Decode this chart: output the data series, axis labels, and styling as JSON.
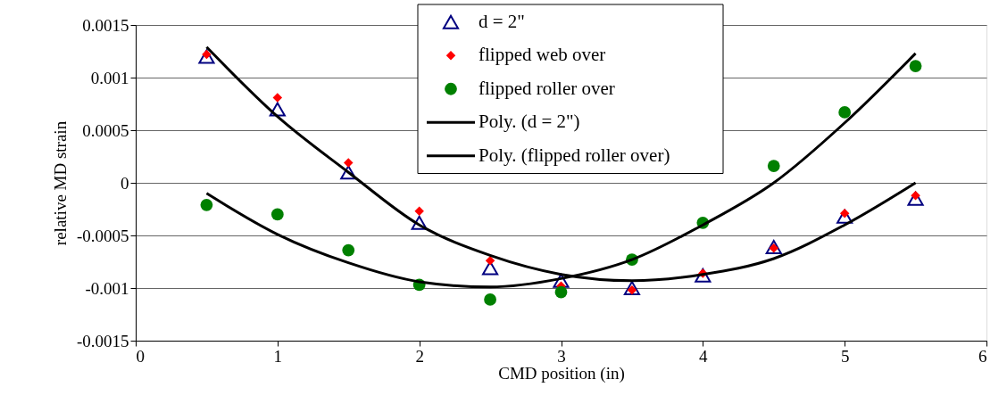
{
  "chart_data": {
    "type": "scatter",
    "xlabel": "CMD position (in)",
    "ylabel": "relative MD strain",
    "xlim": [
      0,
      6
    ],
    "xticks": [
      0,
      1,
      2,
      3,
      4,
      5,
      6
    ],
    "ylim": [
      -0.0015,
      0.0015
    ],
    "yticks": [
      -0.0015,
      -0.001,
      -0.0005,
      0,
      0.0005,
      0.001,
      0.0015
    ],
    "grid": "y",
    "legend": "top",
    "x": [
      0.5,
      1,
      1.5,
      2,
      2.5,
      3,
      3.5,
      4,
      4.5,
      5,
      5.5
    ],
    "series": [
      {
        "name": "d = 2\"",
        "marker": "triangle",
        "color": "#000080",
        "values": [
          0.0012,
          0.0007,
          0.0001,
          -0.00038,
          -0.00081,
          -0.00093,
          -0.001,
          -0.00088,
          -0.00061,
          -0.00032,
          -0.00015
        ]
      },
      {
        "name": "flipped web over",
        "marker": "diamond",
        "color": "#ff0000",
        "values": [
          0.00122,
          0.00081,
          0.00019,
          -0.00027,
          -0.00074,
          -0.00098,
          -0.00102,
          -0.00086,
          -0.00062,
          -0.00029,
          -0.00012
        ]
      },
      {
        "name": "flipped roller over",
        "marker": "circle",
        "color": "#008000",
        "values": [
          -0.00021,
          -0.0003,
          -0.00064,
          -0.00097,
          -0.00111,
          -0.00104,
          -0.00073,
          -0.00038,
          0.00016,
          0.00067,
          0.00111
        ]
      },
      {
        "name": "Poly. (d = 2\")",
        "type": "line",
        "color": "#000000",
        "line_style": "solid",
        "x": [
          0.5,
          1,
          1.5,
          2,
          2.5,
          3,
          3.5,
          4,
          4.5,
          5,
          5.5
        ],
        "values": [
          0.00129,
          0.00063,
          0.0001,
          -0.0004,
          -0.00069,
          -0.00087,
          -0.00093,
          -0.00087,
          -0.00072,
          -0.0004,
          0.0
        ]
      },
      {
        "name": "Poly. (flipped roller over)",
        "type": "line",
        "color": "#000000",
        "line_style": "solid",
        "x": [
          0.5,
          1,
          1.5,
          2,
          2.5,
          3,
          3.5,
          4,
          4.5,
          5,
          5.5
        ],
        "values": [
          -0.0001,
          -0.00049,
          -0.00076,
          -0.00094,
          -0.00099,
          -0.00091,
          -0.00073,
          -0.0004,
          0.0,
          0.00057,
          0.00123
        ]
      }
    ]
  }
}
